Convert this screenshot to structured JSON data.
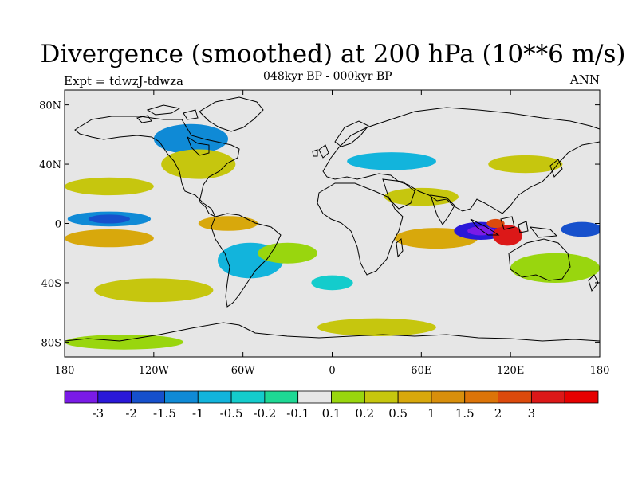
{
  "header": {
    "title": "Divergence (smoothed) at 200 hPa (10**6 m/s)",
    "subtitle": "048kyr BP - 000kyr BP",
    "experiment": "Expt = tdwzJ-tdwza",
    "season": "ANN"
  },
  "map": {
    "lon_range": [
      -180,
      180
    ],
    "lat_range": [
      -90,
      90
    ],
    "lat_ticks": [
      {
        "value": 80,
        "label": "80N"
      },
      {
        "value": 40,
        "label": "40N"
      },
      {
        "value": 0,
        "label": "0"
      },
      {
        "value": -40,
        "label": "40S"
      },
      {
        "value": -80,
        "label": "80S"
      }
    ],
    "lon_ticks": [
      {
        "value": -180,
        "label": "180"
      },
      {
        "value": -120,
        "label": "120W"
      },
      {
        "value": -60,
        "label": "60W"
      },
      {
        "value": 0,
        "label": "0"
      },
      {
        "value": 60,
        "label": "60E"
      },
      {
        "value": 120,
        "label": "120E"
      },
      {
        "value": 180,
        "label": "180"
      }
    ],
    "neutral_color": "#e6e6e6",
    "coast_color": "#000000"
  },
  "colorbar": {
    "colors": [
      "#7a1be6",
      "#2a18d8",
      "#1650cc",
      "#0f8ad6",
      "#12b4dc",
      "#14cccc",
      "#1ed894",
      "#e6e6e6",
      "#99d60e",
      "#c6c60e",
      "#d8a80c",
      "#d88f0c",
      "#dc7408",
      "#dc4a0c",
      "#dc1818",
      "#e60000"
    ],
    "labels": [
      "-3",
      "-2",
      "-1.5",
      "-1",
      "-0.5",
      "-0.2",
      "-0.1",
      "0.1",
      "0.2",
      "0.5",
      "1",
      "1.5",
      "2",
      "3"
    ]
  },
  "field_blobs": [
    {
      "lon": 100,
      "lat": -5,
      "rlon": 18,
      "rlat": 6,
      "level": 1
    },
    {
      "lon": 100,
      "lat": -5,
      "rlon": 9,
      "rlat": 3,
      "level": 0
    },
    {
      "lon": 168,
      "lat": -4,
      "rlon": 14,
      "rlat": 5,
      "level": 2
    },
    {
      "lon": -150,
      "lat": 3,
      "rlon": 28,
      "rlat": 5,
      "level": 3
    },
    {
      "lon": -150,
      "lat": 3,
      "rlon": 14,
      "rlat": 3,
      "level": 2
    },
    {
      "lon": -95,
      "lat": 57,
      "rlon": 25,
      "rlat": 10,
      "level": 3
    },
    {
      "lon": -55,
      "lat": -25,
      "rlon": 22,
      "rlat": 12,
      "level": 4
    },
    {
      "lon": 40,
      "lat": 42,
      "rlon": 30,
      "rlat": 6,
      "level": 4
    },
    {
      "lon": 0,
      "lat": -40,
      "rlon": 14,
      "rlat": 5,
      "level": 5
    },
    {
      "lon": 118,
      "lat": -8,
      "rlon": 10,
      "rlat": 7,
      "level": 14
    },
    {
      "lon": 110,
      "lat": 0,
      "rlon": 6,
      "rlat": 3,
      "level": 13
    },
    {
      "lon": -150,
      "lat": -10,
      "rlon": 30,
      "rlat": 6,
      "level": 10
    },
    {
      "lon": -70,
      "lat": 0,
      "rlon": 20,
      "rlat": 5,
      "level": 10
    },
    {
      "lon": 70,
      "lat": -10,
      "rlon": 28,
      "rlat": 7,
      "level": 10
    },
    {
      "lon": -150,
      "lat": 25,
      "rlon": 30,
      "rlat": 6,
      "level": 9
    },
    {
      "lon": -90,
      "lat": 40,
      "rlon": 25,
      "rlat": 10,
      "level": 9
    },
    {
      "lon": 130,
      "lat": 40,
      "rlon": 25,
      "rlat": 6,
      "level": 9
    },
    {
      "lon": 60,
      "lat": 18,
      "rlon": 25,
      "rlat": 6,
      "level": 9
    },
    {
      "lon": -30,
      "lat": -20,
      "rlon": 20,
      "rlat": 7,
      "level": 8
    },
    {
      "lon": 150,
      "lat": -30,
      "rlon": 30,
      "rlat": 10,
      "level": 8
    },
    {
      "lon": -120,
      "lat": -45,
      "rlon": 40,
      "rlat": 8,
      "level": 9
    },
    {
      "lon": 30,
      "lat": -70,
      "rlon": 40,
      "rlat": 6,
      "level": 9
    },
    {
      "lon": -140,
      "lat": -80,
      "rlon": 40,
      "rlat": 5,
      "level": 8
    }
  ]
}
